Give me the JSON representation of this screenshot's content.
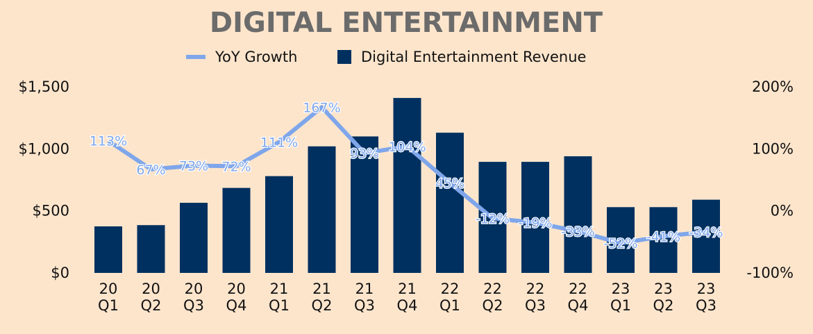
{
  "chart_data": {
    "type": "bar",
    "title": "DIGITAL ENTERTAINMENT",
    "legend": [
      "YoY Growth",
      "Digital Entertainment Revenue"
    ],
    "legend_position": "top",
    "categories": [
      [
        "20",
        "Q1"
      ],
      [
        "20",
        "Q2"
      ],
      [
        "20",
        "Q3"
      ],
      [
        "20",
        "Q4"
      ],
      [
        "21",
        "Q1"
      ],
      [
        "21",
        "Q2"
      ],
      [
        "21",
        "Q3"
      ],
      [
        "21",
        "Q4"
      ],
      [
        "22",
        "Q1"
      ],
      [
        "22",
        "Q2"
      ],
      [
        "22",
        "Q3"
      ],
      [
        "22",
        "Q4"
      ],
      [
        "23",
        "Q1"
      ],
      [
        "23",
        "Q2"
      ],
      [
        "23",
        "Q3"
      ]
    ],
    "series": [
      {
        "name": "Digital Entertainment Revenue",
        "type": "bar",
        "axis": "left",
        "color": "#00305f",
        "values": [
          375,
          385,
          565,
          685,
          780,
          1020,
          1100,
          1410,
          1130,
          895,
          895,
          940,
          530,
          530,
          590
        ]
      },
      {
        "name": "YoY Growth",
        "type": "line",
        "axis": "right",
        "color": "#7fa6ea",
        "values": [
          113,
          67,
          73,
          72,
          111,
          167,
          93,
          104,
          45,
          -12,
          -19,
          -33,
          -52,
          -41,
          -34
        ],
        "labels": [
          "113%",
          "67%",
          "73%",
          "72%",
          "111%",
          "167%",
          "93%",
          "104%",
          "45%",
          "-12%",
          "-19%",
          "-33%",
          "-52%",
          "-41%",
          "-34%"
        ]
      }
    ],
    "left_axis": {
      "ylim": [
        0,
        1500
      ],
      "ticks": [
        "$0",
        "$500",
        "$1,000",
        "$1,500"
      ]
    },
    "right_axis": {
      "ylim": [
        -100,
        200
      ],
      "ticks": [
        "-100%",
        "0%",
        "100%",
        "200%"
      ]
    },
    "grid": false
  }
}
